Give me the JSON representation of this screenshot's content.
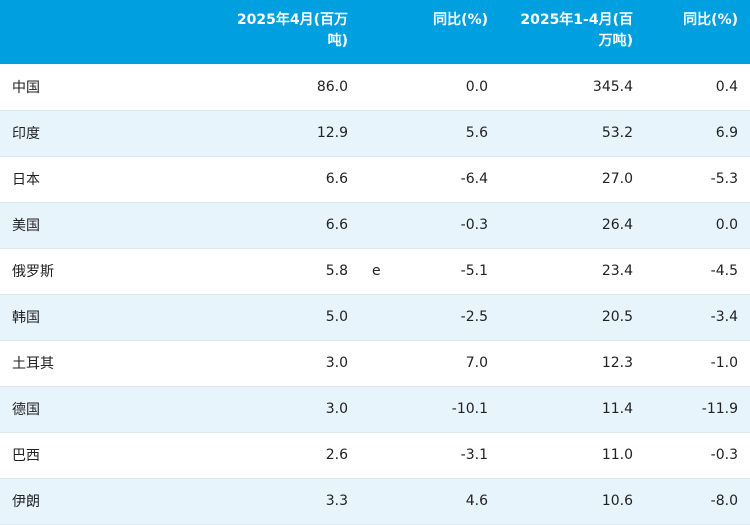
{
  "header": {
    "country": "",
    "apr_2025": "2025年4月(百万吨)",
    "flag": "",
    "yoy_apr": "同比(%)",
    "ytd_2025": "2025年1-4月(百万吨)",
    "yoy_ytd": "同比(%)"
  },
  "rows": [
    {
      "country": "中国",
      "apr": "86.0",
      "flag": "",
      "yoy_apr": "0.0",
      "ytd": "345.4",
      "yoy_ytd": "0.4"
    },
    {
      "country": "印度",
      "apr": "12.9",
      "flag": "",
      "yoy_apr": "5.6",
      "ytd": "53.2",
      "yoy_ytd": "6.9"
    },
    {
      "country": "日本",
      "apr": "6.6",
      "flag": "",
      "yoy_apr": "-6.4",
      "ytd": "27.0",
      "yoy_ytd": "-5.3"
    },
    {
      "country": "美国",
      "apr": "6.6",
      "flag": "",
      "yoy_apr": "-0.3",
      "ytd": "26.4",
      "yoy_ytd": "0.0"
    },
    {
      "country": "俄罗斯",
      "apr": "5.8",
      "flag": "e",
      "yoy_apr": "-5.1",
      "ytd": "23.4",
      "yoy_ytd": "-4.5"
    },
    {
      "country": "韩国",
      "apr": "5.0",
      "flag": "",
      "yoy_apr": "-2.5",
      "ytd": "20.5",
      "yoy_ytd": "-3.4"
    },
    {
      "country": "土耳其",
      "apr": "3.0",
      "flag": "",
      "yoy_apr": "7.0",
      "ytd": "12.3",
      "yoy_ytd": "-1.0"
    },
    {
      "country": "德国",
      "apr": "3.0",
      "flag": "",
      "yoy_apr": "-10.1",
      "ytd": "11.4",
      "yoy_ytd": "-11.9"
    },
    {
      "country": "巴西",
      "apr": "2.6",
      "flag": "",
      "yoy_apr": "-3.1",
      "ytd": "11.0",
      "yoy_ytd": "-0.3"
    },
    {
      "country": "伊朗",
      "apr": "3.3",
      "flag": "",
      "yoy_apr": "4.6",
      "ytd": "10.6",
      "yoy_ytd": "-8.0"
    }
  ],
  "colors": {
    "header_bg": "#00a0e0",
    "stripe_bg": "#e8f4fc"
  }
}
